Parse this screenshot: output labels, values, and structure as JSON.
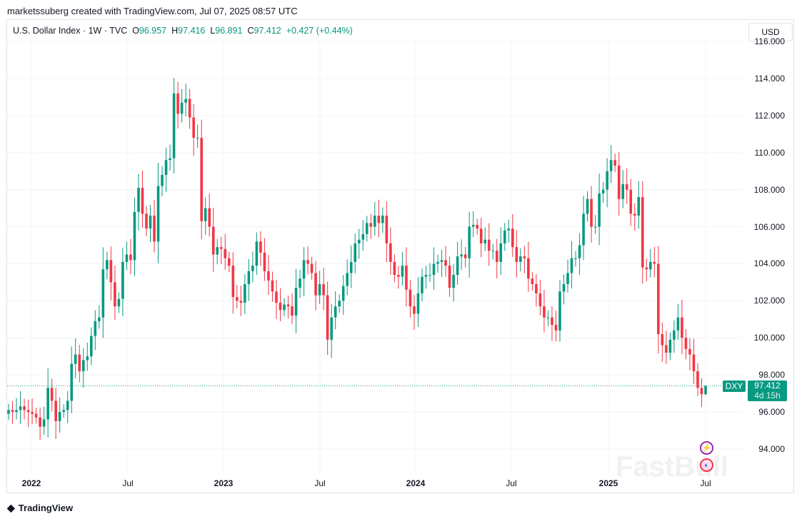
{
  "credit": "marketssuberg created with TradingView.com, Jul 07, 2025 08:57 UTC",
  "legend": {
    "symbol": "U.S. Dollar Index · 1W · TVC",
    "o_label": "O",
    "o": "96.957",
    "h_label": "H",
    "h": "97.416",
    "l_label": "L",
    "l": "96.891",
    "c_label": "C",
    "c": "97.412",
    "change": "+0.427 (+0.44%)"
  },
  "currency": "USD",
  "last_tag": {
    "ticker": "DXY",
    "price": "97.412",
    "countdown": "4d 15h"
  },
  "brand": "TradingView",
  "watermark": "FastBull",
  "chart_data": {
    "type": "candlestick",
    "title": "U.S. Dollar Index · 1W · TVC",
    "ylim": [
      93,
      116
    ],
    "y_ticks": [
      "94.000",
      "96.000",
      "98.000",
      "100.000",
      "102.000",
      "104.000",
      "106.000",
      "108.000",
      "110.000",
      "112.000",
      "114.000",
      "116.000"
    ],
    "x_ticks": [
      "2022",
      "Jul",
      "2023",
      "Jul",
      "2024",
      "Jul",
      "2025",
      "Jul"
    ],
    "x_range": [
      "2021-11",
      "2025-07"
    ],
    "colors": {
      "up": "#089981",
      "down": "#f23645"
    },
    "last": {
      "open": 96.957,
      "high": 97.416,
      "low": 96.891,
      "close": 97.412
    },
    "weekly_close": [
      96.1,
      96.0,
      96.1,
      96.3,
      96.1,
      96.0,
      95.9,
      95.7,
      95.2,
      95.6,
      97.3,
      96.6,
      95.5,
      96.0,
      96.1,
      96.6,
      98.6,
      99.1,
      98.2,
      98.8,
      99.0,
      100.1,
      100.9,
      101.1,
      103.7,
      104.2,
      103.0,
      101.7,
      102.1,
      104.1,
      104.5,
      104.2,
      106.8,
      108.1,
      106.7,
      105.9,
      106.6,
      105.2,
      108.2,
      108.8,
      109.6,
      109.7,
      113.2,
      112.1,
      112.7,
      112.9,
      111.9,
      110.8,
      110.8,
      106.3,
      107.0,
      106.0,
      104.5,
      104.9,
      104.8,
      104.3,
      103.9,
      102.2,
      102.0,
      101.9,
      102.9,
      103.6,
      103.9,
      105.2,
      104.6,
      103.6,
      103.1,
      102.5,
      101.9,
      101.5,
      101.8,
      101.7,
      101.2,
      102.7,
      103.2,
      104.2,
      104.0,
      103.5,
      102.3,
      102.9,
      102.3,
      99.9,
      101.1,
      101.7,
      102.0,
      102.8,
      103.5,
      104.1,
      105.1,
      105.3,
      105.6,
      106.2,
      106.0,
      106.6,
      106.2,
      106.6,
      105.1,
      104.1,
      103.4,
      103.3,
      103.9,
      102.6,
      101.7,
      101.3,
      102.4,
      103.3,
      103.4,
      103.4,
      104.0,
      104.1,
      104.2,
      103.9,
      102.7,
      103.4,
      104.4,
      104.5,
      104.3,
      106.0,
      106.1,
      105.9,
      105.1,
      105.3,
      104.7,
      104.7,
      104.1,
      105.1,
      105.8,
      105.9,
      104.9,
      104.1,
      104.4,
      104.3,
      103.2,
      102.9,
      102.4,
      101.7,
      101.1,
      101.1,
      100.7,
      100.4,
      102.5,
      102.9,
      103.5,
      104.3,
      104.3,
      105.0,
      106.7,
      107.5,
      106.0,
      106.0,
      107.8,
      108.0,
      109.0,
      109.6,
      109.3,
      107.5,
      108.3,
      108.0,
      106.7,
      106.6,
      107.6,
      103.8,
      103.7,
      104.1,
      104.0,
      100.2,
      99.6,
      99.2,
      99.9,
      100.4,
      101.1,
      100.0,
      99.4,
      99.1,
      98.2,
      97.3,
      96.957,
      97.412
    ]
  }
}
